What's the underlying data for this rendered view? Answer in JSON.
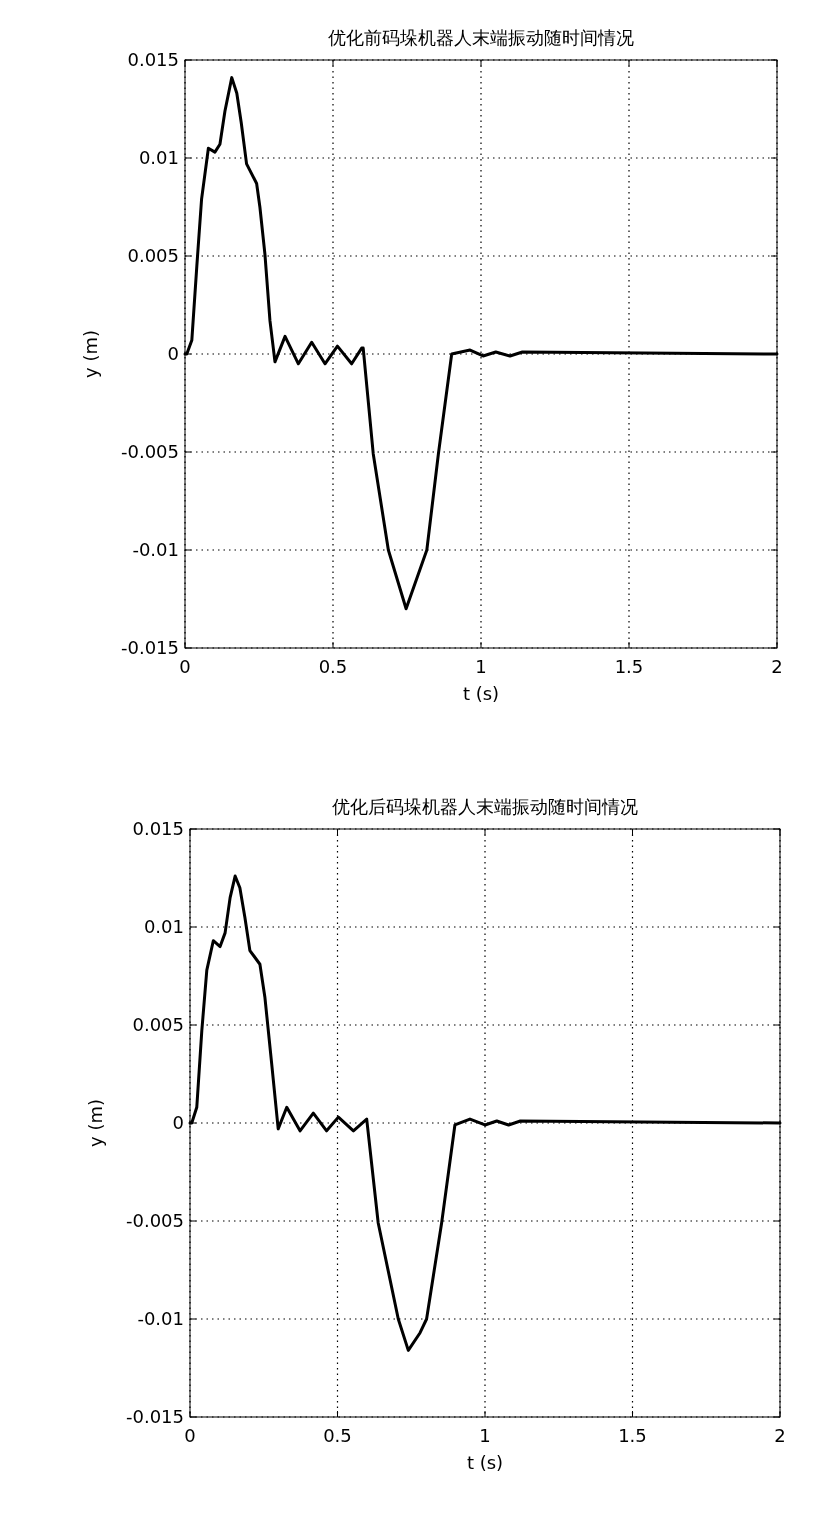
{
  "chart_data": [
    {
      "type": "line",
      "title": "优化前码垛机器人末端振动随时间情况",
      "xlabel": "t (s)",
      "ylabel": "y (m)",
      "xlim": [
        0,
        2
      ],
      "ylim": [
        -0.015,
        0.015
      ],
      "xticks": [
        0,
        0.5,
        1,
        1.5,
        2
      ],
      "yticks": [
        -0.015,
        -0.01,
        -0.005,
        0,
        0.005,
        0.01,
        0.015
      ],
      "grid": true,
      "series": [
        {
          "color": "#000000",
          "x": [
            0,
            0.006,
            0.023,
            0.04,
            0.056,
            0.079,
            0.101,
            0.118,
            0.135,
            0.158,
            0.175,
            0.19,
            0.208,
            0.242,
            0.253,
            0.27,
            0.287,
            0.304,
            0.338,
            0.383,
            0.428,
            0.473,
            0.515,
            0.563,
            0.597,
            0.602,
            0.636,
            0.687,
            0.747,
            0.817,
            0.856,
            0.901,
            0.963,
            1.007,
            1.05,
            1.098,
            1.14,
            2
          ],
          "values": [
            0,
            0,
            0.0007,
            0.0045,
            0.0079,
            0.0105,
            0.0103,
            0.0107,
            0.0124,
            0.0141,
            0.0133,
            0.0118,
            0.0097,
            0.0087,
            0.0075,
            0.0051,
            0.0017,
            -0.0004,
            0.0009,
            -0.0005,
            0.0006,
            -0.0005,
            0.0004,
            -0.0005,
            0.0003,
            0.0003,
            -0.0051,
            -0.01,
            -0.013,
            -0.01,
            -0.0051,
            0,
            0.0002,
            -0.0001,
            0.0001,
            -0.0001,
            0.0001,
            0
          ]
        }
      ]
    },
    {
      "type": "line",
      "title": "优化后码垛机器人末端振动随时间情况",
      "xlabel": "t (s)",
      "ylabel": "y (m)",
      "xlim": [
        0,
        2
      ],
      "ylim": [
        -0.015,
        0.015
      ],
      "xticks": [
        0,
        0.5,
        1,
        1.5,
        2
      ],
      "yticks": [
        -0.015,
        -0.01,
        -0.005,
        0,
        0.005,
        0.01,
        0.015
      ],
      "grid": true,
      "series": [
        {
          "color": "#000000",
          "x": [
            0,
            0.006,
            0.023,
            0.04,
            0.057,
            0.079,
            0.102,
            0.119,
            0.136,
            0.153,
            0.169,
            0.186,
            0.203,
            0.237,
            0.254,
            0.277,
            0.299,
            0.328,
            0.373,
            0.418,
            0.463,
            0.503,
            0.554,
            0.599,
            0.638,
            0.706,
            0.74,
            0.78,
            0.802,
            0.853,
            0.898,
            0.949,
            1.0,
            1.04,
            1.08,
            1.12,
            2
          ],
          "values": [
            0,
            0,
            0.0008,
            0.0047,
            0.0078,
            0.0093,
            0.009,
            0.0097,
            0.0115,
            0.0126,
            0.012,
            0.0105,
            0.0088,
            0.0081,
            0.0064,
            0.003,
            -0.0003,
            0.0008,
            -0.0004,
            0.0005,
            -0.0004,
            0.0003,
            -0.0004,
            0.0002,
            -0.0051,
            -0.01,
            -0.0116,
            -0.0107,
            -0.01,
            -0.0051,
            -0.0001,
            0.0002,
            -0.0001,
            0.0001,
            -0.0001,
            0.0001,
            0
          ]
        }
      ]
    }
  ]
}
